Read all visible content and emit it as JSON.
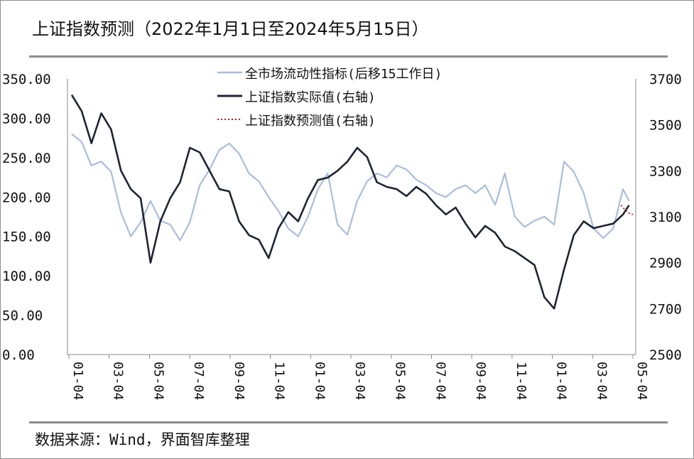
{
  "title": "上证指数预测（2022年1月1日至2024年5月15日）",
  "source": "数据来源：Wind，界面智库整理",
  "colors": {
    "liquidity": "#a9bedc",
    "actual": "#1e2433",
    "forecast": "#b0222a",
    "rule": "#8c8c8c"
  },
  "chart_data": {
    "type": "line",
    "title": "上证指数预测（2022年1月1日至2024年5月15日）",
    "legend_position": "top-center",
    "x_tick_labels": [
      "01-04",
      "03-04",
      "05-04",
      "07-04",
      "09-04",
      "11-04",
      "01-04",
      "03-04",
      "05-04",
      "07-04",
      "09-04",
      "11-04",
      "01-04",
      "03-04",
      "05-04"
    ],
    "y_left": {
      "lim": [
        0,
        350
      ],
      "ticks": [
        "0.00",
        "50.00",
        "100.00",
        "150.00",
        "200.00",
        "250.00",
        "300.00",
        "350.00"
      ]
    },
    "y_right": {
      "lim": [
        2500,
        3700
      ],
      "ticks": [
        "2500",
        "2700",
        "2900",
        "3100",
        "3300",
        "3500",
        "3700"
      ]
    },
    "series": [
      {
        "name": "全市场流动性指标(后移15工作日)",
        "axis": "left",
        "style": "solid",
        "t": [
          0,
          0.5,
          1,
          1.5,
          2,
          2.5,
          3,
          3.5,
          4,
          4.5,
          5,
          5.5,
          6,
          6.5,
          7,
          7.5,
          8,
          8.5,
          9,
          9.5,
          10,
          10.5,
          11,
          11.5,
          12,
          12.5,
          13,
          13.5,
          14,
          14.5,
          15,
          15.5,
          16,
          16.5,
          17,
          17.5,
          18,
          18.5,
          19,
          19.5,
          20,
          20.5,
          21,
          21.5,
          22,
          22.5,
          23,
          23.5,
          24,
          24.5,
          25,
          25.5,
          26,
          26.5,
          27,
          27.5,
          28,
          28.3
        ],
        "values": [
          280,
          270,
          240,
          245,
          232,
          180,
          150,
          168,
          195,
          170,
          165,
          145,
          168,
          215,
          235,
          260,
          268,
          255,
          230,
          220,
          200,
          182,
          160,
          150,
          175,
          210,
          230,
          165,
          152,
          195,
          220,
          230,
          225,
          240,
          235,
          222,
          215,
          205,
          200,
          210,
          215,
          205,
          215,
          190,
          230,
          175,
          162,
          170,
          175,
          165,
          245,
          232,
          205,
          160,
          148,
          160,
          210,
          195
        ],
        "note": "stylized approximation of the plotted curve"
      },
      {
        "name": "上证指数实际值(右轴)",
        "axis": "right",
        "style": "solid",
        "t": [
          0,
          0.5,
          1,
          1.5,
          2,
          2.5,
          3,
          3.5,
          4,
          4.5,
          5,
          5.5,
          6,
          6.5,
          7,
          7.5,
          8,
          8.5,
          9,
          9.5,
          10,
          10.5,
          11,
          11.5,
          12,
          12.5,
          13,
          13.5,
          14,
          14.5,
          15,
          15.5,
          16,
          16.5,
          17,
          17.5,
          18,
          18.5,
          19,
          19.5,
          20,
          20.5,
          21,
          21.5,
          22,
          22.5,
          23,
          23.5,
          24,
          24.5,
          25,
          25.5,
          26,
          26.5,
          27,
          27.5,
          28,
          28.3
        ],
        "values": [
          3630,
          3560,
          3420,
          3550,
          3480,
          3300,
          3220,
          3180,
          2900,
          3080,
          3180,
          3250,
          3400,
          3380,
          3300,
          3220,
          3210,
          3080,
          3020,
          3000,
          2920,
          3050,
          3120,
          3080,
          3180,
          3260,
          3270,
          3300,
          3340,
          3400,
          3360,
          3250,
          3230,
          3220,
          3190,
          3230,
          3200,
          3150,
          3110,
          3140,
          3070,
          3010,
          3060,
          3030,
          2970,
          2950,
          2920,
          2890,
          2750,
          2700,
          2870,
          3020,
          3080,
          3050,
          3060,
          3070,
          3110,
          3150
        ],
        "note": "stylized approximation of the plotted curve"
      },
      {
        "name": "上证指数预测值(右轴)",
        "axis": "right",
        "style": "dotted",
        "t": [
          27.9,
          28.1,
          28.3,
          28.5
        ],
        "values": [
          3150,
          3130,
          3115,
          3110
        ],
        "note": "short dotted forecast segment at the right end"
      }
    ]
  }
}
